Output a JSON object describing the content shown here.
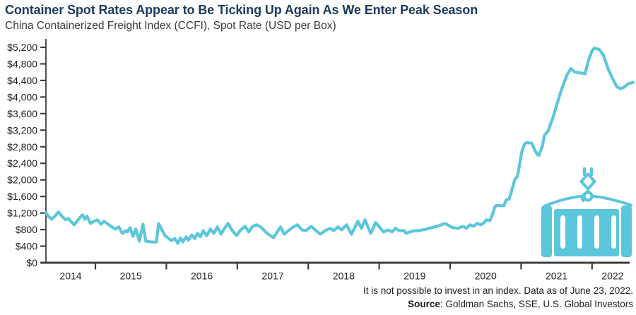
{
  "header": {
    "title": "Container Spot Rates Appear to Be Ticking Up Again As We Enter Peak Season",
    "subtitle": "China Containerized Freight Index (CCFI), Spot Rate (USD per Box)"
  },
  "footnote": {
    "line1": "It is not possible to invest in an index. Data as of June 23, 2022.",
    "source_label": "Source",
    "source_rest": ": Goldman Sachs, SSE, U.S. Global Investors"
  },
  "colors": {
    "accent": "#5BC6DC",
    "title": "#1B3A5E",
    "axis": "#3F3F3F",
    "text": "#1E1E1E"
  },
  "icons": {
    "decoration": "container-crane-icon"
  },
  "chart_data": {
    "type": "line",
    "title": "Container Spot Rates Appear to Be Ticking Up Again As We Enter Peak Season",
    "subtitle": "China Containerized Freight Index (CCFI), Spot Rate (USD per Box)",
    "xlabel": "",
    "ylabel": "Spot Rate (USD per Box)",
    "xlim": [
      2014.3,
      2022.58
    ],
    "ylim": [
      0,
      5200
    ],
    "grid": false,
    "legend": "none",
    "y_ticks": [
      0,
      400,
      800,
      1200,
      1600,
      2000,
      2400,
      2800,
      3200,
      3600,
      4000,
      4400,
      4800,
      5200
    ],
    "y_tick_labels": [
      "$0",
      "$400",
      "$800",
      "$1,200",
      "$1,600",
      "$2,000",
      "$2,400",
      "$2,800",
      "$3,200",
      "$3,600",
      "$4,000",
      "$4,400",
      "$4,800",
      "$5,200"
    ],
    "x_tick_labels": [
      "2014",
      "2015",
      "2016",
      "2017",
      "2018",
      "2019",
      "2020",
      "2021",
      "2022"
    ],
    "series": [
      {
        "name": "CCFI Spot Rate (USD per Box)",
        "color": "#5BC6DC",
        "points": [
          [
            2014.3,
            1210
          ],
          [
            2014.34,
            1120
          ],
          [
            2014.38,
            1050
          ],
          [
            2014.43,
            1125
          ],
          [
            2014.48,
            1225
          ],
          [
            2014.53,
            1120
          ],
          [
            2014.58,
            1035
          ],
          [
            2014.62,
            1070
          ],
          [
            2014.66,
            985
          ],
          [
            2014.7,
            915
          ],
          [
            2014.75,
            1020
          ],
          [
            2014.78,
            1090
          ],
          [
            2014.82,
            1155
          ],
          [
            2014.85,
            1050
          ],
          [
            2014.88,
            1125
          ],
          [
            2014.93,
            950
          ],
          [
            2014.98,
            1000
          ],
          [
            2015.03,
            1035
          ],
          [
            2015.08,
            930
          ],
          [
            2015.12,
            1000
          ],
          [
            2015.22,
            880
          ],
          [
            2015.28,
            810
          ],
          [
            2015.33,
            865
          ],
          [
            2015.38,
            710
          ],
          [
            2015.43,
            775
          ],
          [
            2015.45,
            745
          ],
          [
            2015.49,
            845
          ],
          [
            2015.53,
            640
          ],
          [
            2015.57,
            815
          ],
          [
            2015.62,
            520
          ],
          [
            2015.67,
            930
          ],
          [
            2015.71,
            520
          ],
          [
            2015.79,
            500
          ],
          [
            2015.86,
            500
          ],
          [
            2015.89,
            950
          ],
          [
            2015.98,
            655
          ],
          [
            2016.02,
            605
          ],
          [
            2016.07,
            535
          ],
          [
            2016.12,
            585
          ],
          [
            2016.16,
            470
          ],
          [
            2016.2,
            600
          ],
          [
            2016.23,
            500
          ],
          [
            2016.28,
            625
          ],
          [
            2016.31,
            540
          ],
          [
            2016.36,
            670
          ],
          [
            2016.4,
            585
          ],
          [
            2016.44,
            710
          ],
          [
            2016.48,
            625
          ],
          [
            2016.52,
            775
          ],
          [
            2016.57,
            650
          ],
          [
            2016.62,
            815
          ],
          [
            2016.67,
            710
          ],
          [
            2016.72,
            865
          ],
          [
            2016.77,
            690
          ],
          [
            2016.82,
            830
          ],
          [
            2016.87,
            950
          ],
          [
            2016.92,
            795
          ],
          [
            2016.99,
            655
          ],
          [
            2017.04,
            775
          ],
          [
            2017.11,
            880
          ],
          [
            2017.16,
            745
          ],
          [
            2017.21,
            865
          ],
          [
            2017.27,
            915
          ],
          [
            2017.33,
            865
          ],
          [
            2017.42,
            710
          ],
          [
            2017.51,
            605
          ],
          [
            2017.61,
            865
          ],
          [
            2017.66,
            690
          ],
          [
            2017.72,
            775
          ],
          [
            2017.79,
            865
          ],
          [
            2017.85,
            915
          ],
          [
            2017.91,
            795
          ],
          [
            2017.97,
            775
          ],
          [
            2018.04,
            880
          ],
          [
            2018.11,
            775
          ],
          [
            2018.17,
            690
          ],
          [
            2018.24,
            775
          ],
          [
            2018.31,
            830
          ],
          [
            2018.36,
            775
          ],
          [
            2018.42,
            865
          ],
          [
            2018.47,
            795
          ],
          [
            2018.54,
            915
          ],
          [
            2018.61,
            690
          ],
          [
            2018.7,
            1000
          ],
          [
            2018.75,
            830
          ],
          [
            2018.8,
            1035
          ],
          [
            2018.88,
            710
          ],
          [
            2018.95,
            970
          ],
          [
            2019.06,
            745
          ],
          [
            2019.13,
            795
          ],
          [
            2019.18,
            745
          ],
          [
            2019.23,
            830
          ],
          [
            2019.28,
            775
          ],
          [
            2019.35,
            775
          ],
          [
            2019.38,
            710
          ],
          [
            2019.46,
            760
          ],
          [
            2019.56,
            775
          ],
          [
            2019.66,
            810
          ],
          [
            2019.76,
            855
          ],
          [
            2019.85,
            900
          ],
          [
            2019.93,
            950
          ],
          [
            2020.03,
            850
          ],
          [
            2020.11,
            830
          ],
          [
            2020.18,
            880
          ],
          [
            2020.23,
            830
          ],
          [
            2020.28,
            915
          ],
          [
            2020.33,
            880
          ],
          [
            2020.38,
            950
          ],
          [
            2020.43,
            915
          ],
          [
            2020.48,
            970
          ],
          [
            2020.51,
            1035
          ],
          [
            2020.56,
            1015
          ],
          [
            2020.6,
            1175
          ],
          [
            2020.63,
            1350
          ],
          [
            2020.65,
            1380
          ],
          [
            2020.76,
            1380
          ],
          [
            2020.79,
            1520
          ],
          [
            2020.83,
            1535
          ],
          [
            2020.86,
            1690
          ],
          [
            2020.91,
            2005
          ],
          [
            2020.95,
            2090
          ],
          [
            2020.98,
            2385
          ],
          [
            2021.01,
            2680
          ],
          [
            2021.05,
            2870
          ],
          [
            2021.08,
            2900
          ],
          [
            2021.15,
            2885
          ],
          [
            2021.19,
            2730
          ],
          [
            2021.23,
            2610
          ],
          [
            2021.25,
            2590
          ],
          [
            2021.3,
            2815
          ],
          [
            2021.33,
            3075
          ],
          [
            2021.38,
            3180
          ],
          [
            2021.45,
            3510
          ],
          [
            2021.51,
            3855
          ],
          [
            2021.58,
            4235
          ],
          [
            2021.65,
            4545
          ],
          [
            2021.7,
            4685
          ],
          [
            2021.76,
            4600
          ],
          [
            2021.85,
            4580
          ],
          [
            2021.9,
            4560
          ],
          [
            2021.95,
            4890
          ],
          [
            2022.0,
            5115
          ],
          [
            2022.03,
            5180
          ],
          [
            2022.1,
            5150
          ],
          [
            2022.16,
            5010
          ],
          [
            2022.23,
            4665
          ],
          [
            2022.3,
            4405
          ],
          [
            2022.35,
            4250
          ],
          [
            2022.4,
            4200
          ],
          [
            2022.45,
            4235
          ],
          [
            2022.51,
            4320
          ],
          [
            2022.58,
            4355
          ]
        ]
      }
    ]
  }
}
